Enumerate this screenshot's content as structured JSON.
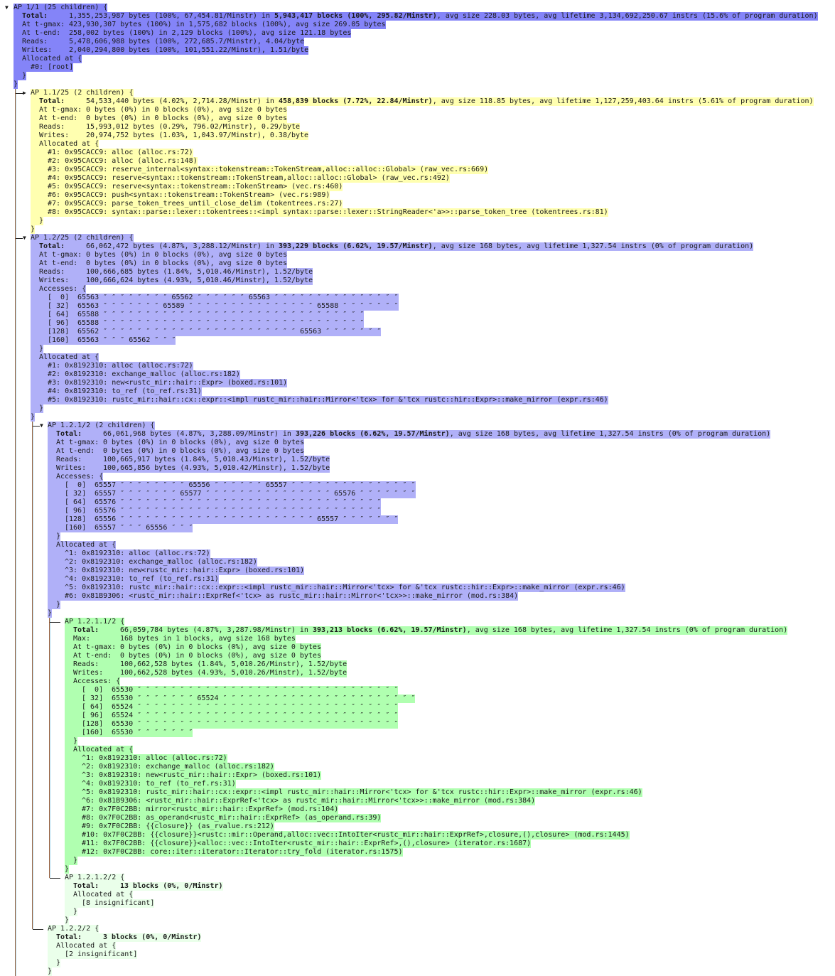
{
  "colors": {
    "root": "#8484f8",
    "blue": "#b0b0f8",
    "yellow": "#ffffb0",
    "green": "#b0ffb0",
    "pale_green": "#eaffea"
  },
  "tree": {
    "toggle": "▼",
    "header": "AP 1/1 (25 children) {",
    "bg": "#8484f8",
    "total": {
      "label": "Total:",
      "pre": "1,355,253,987 bytes (100%, 67,454.81/Minstr) in ",
      "bold": "5,943,417 blocks (100%, 295.82/Minstr)",
      "post": ", avg size 228.03 bytes, avg lifetime 3,134,692,250.67 instrs (15.6% of program duration)"
    },
    "stats": [
      {
        "label": "At t-gmax:",
        "value": "423,930,307 bytes (100%) in 1,575,682 blocks (100%), avg size 269.05 bytes"
      },
      {
        "label": "At t-end:",
        "value": "258,002 bytes (100%) in 2,129 blocks (100%), avg size 121.18 bytes"
      },
      {
        "label": "Reads:",
        "value": "5,478,606,988 bytes (100%, 272,685.7/Minstr), 4.04/byte"
      },
      {
        "label": "Writes:",
        "value": "2,040,294,800 bytes (100%, 101,551.22/Minstr), 1.51/byte"
      }
    ],
    "allocated": {
      "label": "Allocated at {",
      "frames": [
        "#0: [root]"
      ],
      "close": "}"
    },
    "close": "}",
    "children": [
      {
        "toggle": "▶",
        "header": "AP 1.1/25 (2 children) {",
        "bg": "#ffffb0",
        "total": {
          "label": "Total:",
          "pre": "54,533,440 bytes (4.02%, 2,714.28/Minstr) in ",
          "bold": "458,839 blocks (7.72%, 22.84/Minstr)",
          "post": ", avg size 118.85 bytes, avg lifetime 1,127,259,403.64 instrs (5.61% of program duration)"
        },
        "stats": [
          {
            "label": "At t-gmax:",
            "value": "0 bytes (0%) in 0 blocks (0%), avg size 0 bytes"
          },
          {
            "label": "At t-end:",
            "value": "0 bytes (0%) in 0 blocks (0%), avg size 0 bytes"
          },
          {
            "label": "Reads:",
            "value": "15,993,012 bytes (0.29%, 796.02/Minstr), 0.29/byte"
          },
          {
            "label": "Writes:",
            "value": "20,974,752 bytes (1.03%, 1,043.97/Minstr), 0.38/byte"
          }
        ],
        "allocated": {
          "label": "Allocated at {",
          "frames": [
            "#1: 0x95CACC9: alloc (alloc.rs:72)",
            "#2: 0x95CACC9: alloc (alloc.rs:148)",
            "#3: 0x95CACC9: reserve_internal<syntax::tokenstream::TokenStream,alloc::alloc::Global> (raw_vec.rs:669)",
            "#4: 0x95CACC9: reserve<syntax::tokenstream::TokenStream,alloc::alloc::Global> (raw_vec.rs:492)",
            "#5: 0x95CACC9: reserve<syntax::tokenstream::TokenStream> (vec.rs:460)",
            "#6: 0x95CACC9: push<syntax::tokenstream::TokenStream> (vec.rs:989)",
            "#7: 0x95CACC9: parse_token_trees_until_close_delim (tokentrees.rs:27)",
            "#8: 0x95CACC9: syntax::parse::lexer::tokentrees::<impl syntax::parse::lexer::StringReader<'a>>::parse_token_tree (tokentrees.rs:81)"
          ],
          "close": "}"
        },
        "close": "}",
        "children": []
      },
      {
        "toggle": "▼",
        "header": "AP 1.2/25 (2 children) {",
        "bg": "#b0b0f8",
        "total": {
          "label": "Total:",
          "pre": "66,062,472 bytes (4.87%, 3,288.12/Minstr) in ",
          "bold": "393,229 blocks (6.62%, 19.57/Minstr)",
          "post": ", avg size 168 bytes, avg lifetime 1,327.54 instrs (0% of program duration)"
        },
        "stats": [
          {
            "label": "At t-gmax:",
            "value": "0 bytes (0%) in 0 blocks (0%), avg size 0 bytes"
          },
          {
            "label": "At t-end:",
            "value": "0 bytes (0%) in 0 blocks (0%), avg size 0 bytes"
          },
          {
            "label": "Reads:",
            "value": "100,666,685 bytes (1.84%, 5,010.46/Minstr), 1.52/byte"
          },
          {
            "label": "Writes:",
            "value": "100,666,624 bytes (4.93%, 5,010.46/Minstr), 1.52/byte"
          }
        ],
        "accesses": {
          "label": "Accesses: {",
          "rows": [
            {
              "offset": "[  0]",
              "values": "65563 ″ ″ ″ ″ ″ ″ ″ ″ 65562 ″ ″ ″ ″ ″ ″ 65563 ″ ″ ″ ″ ″ ″ ″ ″ ″ ″ ″ ″ ″ ″ ″"
            },
            {
              "offset": "[ 32]",
              "values": "65563 ″ ″ ″ ″ ″ ″ ″ 65589 ″ ″ ″ ″ ″ ″ ″ ″ ″ ″ ″ ″ ″ ″ ″ 65588 ″ ″ ″ ″ ″ ″ ″"
            },
            {
              "offset": "[ 64]",
              "values": "65588 ″ ″ ″ ″ ″ ″ ″ ″ ″ ″ ″ ″ ″ ″ ″ ″ ″ ″ ″ ″ ″ ″ ″ ″ ″ ″ ″ ″ ″ ″ ″"
            },
            {
              "offset": "[ 96]",
              "values": "65588 ″ ″ ″ ″ ″ ″ ″ ″ ″ ″ ″ ″ ″ ″ ″ ″ ″ ″ ″ ″ ″ ″ ″ ″ ″ ″ ″ ″ ″ ″ ″"
            },
            {
              "offset": "[128]",
              "values": "65562 ″ ″ ″ ″ ″ ″ ″ ″ ″ ″ ″ ″ ″ ″ ″ ″ ″ ″ ″ ″ ″ ″ ″ 65563 ″ ″ ″ ″ ″ ″ ″"
            },
            {
              "offset": "[160]",
              "values": "65563 ″ ″ ″ 65562 ″ ″ ″"
            }
          ],
          "close": "}"
        },
        "allocated": {
          "label": "Allocated at {",
          "frames": [
            "#1: 0x8192310: alloc (alloc.rs:72)",
            "#2: 0x8192310: exchange_malloc (alloc.rs:182)",
            "#3: 0x8192310: new<rustc_mir::hair::Expr> (boxed.rs:101)",
            "#4: 0x8192310: to_ref (to_ref.rs:31)",
            "#5: 0x8192310: rustc_mir::hair::cx::expr::<impl rustc_mir::hair::Mirror<'tcx> for &'tcx rustc::hir::Expr>::make_mirror (expr.rs:46)"
          ],
          "close": "}"
        },
        "close": "}",
        "children": [
          {
            "toggle": "▼",
            "header": "AP 1.2.1/2 (2 children) {",
            "bg": "#b0b0f8",
            "total": {
              "label": "Total:",
              "pre": "66,061,968 bytes (4.87%, 3,288.09/Minstr) in ",
              "bold": "393,226 blocks (6.62%, 19.57/Minstr)",
              "post": ", avg size 168 bytes, avg lifetime 1,327.54 instrs (0% of program duration)"
            },
            "stats": [
              {
                "label": "At t-gmax:",
                "value": "0 bytes (0%) in 0 blocks (0%), avg size 0 bytes"
              },
              {
                "label": "At t-end:",
                "value": "0 bytes (0%) in 0 blocks (0%), avg size 0 bytes"
              },
              {
                "label": "Reads:",
                "value": "100,665,917 bytes (1.84%, 5,010.43/Minstr), 1.52/byte"
              },
              {
                "label": "Writes:",
                "value": "100,665,856 bytes (4.93%, 5,010.42/Minstr), 1.52/byte"
              }
            ],
            "accesses": {
              "label": "Accesses: {",
              "rows": [
                {
                  "offset": "[  0]",
                  "values": "65557 ″ ″ ″ ″ ″ ″ ″ ″ 65556 ″ ″ ″ ″ ″ ″ 65557 ″ ″ ″ ″ ″ ″ ″ ″ ″ ″ ″ ″ ″ ″ ″"
                },
                {
                  "offset": "[ 32]",
                  "values": "65557 ″ ″ ″ ″ ″ ″ ″ 65577 ″ ″ ″ ″ ″ ″ ″ ″ ″ ″ ″ ″ ″ ″ ″ 65576 ″ ″ ″ ″ ″ ″ ″"
                },
                {
                  "offset": "[ 64]",
                  "values": "65576 ″ ″ ″ ″ ″ ″ ″ ″ ″ ″ ″ ″ ″ ″ ″ ″ ″ ″ ″ ″ ″ ″ ″ ″ ″ ″ ″ ″ ″ ″ ″"
                },
                {
                  "offset": "[ 96]",
                  "values": "65576 ″ ″ ″ ″ ″ ″ ″ ″ ″ ″ ″ ″ ″ ″ ″ ″ ″ ″ ″ ″ ″ ″ ″ ″ ″ ″ ″ ″ ″ ″ ″"
                },
                {
                  "offset": "[128]",
                  "values": "65556 ″ ″ ″ ″ ″ ″ ″ ″ ″ ″ ″ ″ ″ ″ ″ ″ ″ ″ ″ ″ ″ ″ ″ 65557 ″ ″ ″ ″ ″ ″ ″"
                },
                {
                  "offset": "[160]",
                  "values": "65557 ″ ″ ″ 65556 ″ ″ ″"
                }
              ],
              "close": "}"
            },
            "allocated": {
              "label": "Allocated at {",
              "frames": [
                "^1: 0x8192310: alloc (alloc.rs:72)",
                "^2: 0x8192310: exchange_malloc (alloc.rs:182)",
                "^3: 0x8192310: new<rustc_mir::hair::Expr> (boxed.rs:101)",
                "^4: 0x8192310: to_ref (to_ref.rs:31)",
                "^5: 0x8192310: rustc_mir::hair::cx::expr::<impl rustc_mir::hair::Mirror<'tcx> for &'tcx rustc::hir::Expr>::make_mirror (expr.rs:46)",
                "#6: 0x81B9306: <rustc_mir::hair::ExprRef<'tcx> as rustc_mir::hair::Mirror<'tcx>>::make_mirror (mod.rs:384)"
              ],
              "close": "}"
            },
            "close": "}",
            "children": [
              {
                "toggle": "",
                "header": "AP 1.2.1.1/2 {",
                "bg": "#b0ffb0",
                "total": {
                  "label": "Total:",
                  "pre": "66,059,784 bytes (4.87%, 3,287.98/Minstr) in ",
                  "bold": "393,213 blocks (6.62%, 19.57/Minstr)",
                  "post": ", avg size 168 bytes, avg lifetime 1,327.54 instrs (0% of program duration)"
                },
                "stats": [
                  {
                    "label": "Max:",
                    "value": "168 bytes in 1 blocks, avg size 168 bytes"
                  },
                  {
                    "label": "At t-gmax:",
                    "value": "0 bytes (0%) in 0 blocks (0%), avg size 0 bytes"
                  },
                  {
                    "label": "At t-end:",
                    "value": "0 bytes (0%) in 0 blocks (0%), avg size 0 bytes"
                  },
                  {
                    "label": "Reads:",
                    "value": "100,662,528 bytes (1.84%, 5,010.26/Minstr), 1.52/byte"
                  },
                  {
                    "label": "Writes:",
                    "value": "100,662,528 bytes (4.93%, 5,010.26/Minstr), 1.52/byte"
                  }
                ],
                "accesses": {
                  "label": "Accesses: {",
                  "rows": [
                    {
                      "offset": "[  0]",
                      "values": "65530 ″ ″ ″ ″ ″ ″ ″ ″ ″ ″ ″ ″ ″ ″ ″ ″ ″ ″ ″ ″ ″ ″ ″ ″ ″ ″ ″ ″ ″ ″ ″"
                    },
                    {
                      "offset": "[ 32]",
                      "values": "65530 ″ ″ ″ ″ ″ ″ ″ 65524 ″ ″ ″ ″ ″ ″ ″ ″ ″ ″ ″ ″ ″ ″ ″ ″ ″ ″ ″ ″ ″ ″ ″"
                    },
                    {
                      "offset": "[ 64]",
                      "values": "65524 ″ ″ ″ ″ ″ ″ ″ ″ ″ ″ ″ ″ ″ ″ ″ ″ ″ ″ ″ ″ ″ ″ ″ ″ ″ ″ ″ ″ ″ ″ ″"
                    },
                    {
                      "offset": "[ 96]",
                      "values": "65524 ″ ″ ″ ″ ″ ″ ″ ″ ″ ″ ″ ″ ″ ″ ″ ″ ″ ″ ″ ″ ″ ″ ″ ″ ″ ″ ″ ″ ″ ″ ″"
                    },
                    {
                      "offset": "[128]",
                      "values": "65530 ″ ″ ″ ″ ″ ″ ″ ″ ″ ″ ″ ″ ″ ″ ″ ″ ″ ″ ″ ″ ″ ″ ″ ″ ″ ″ ″ ″ ″ ″ ″"
                    },
                    {
                      "offset": "[160]",
                      "values": "65530 ″ ″ ″ ″ ″ ″ ″"
                    }
                  ],
                  "close": "}"
                },
                "allocated": {
                  "label": "Allocated at {",
                  "frames": [
                    "^1: 0x8192310: alloc (alloc.rs:72)",
                    "^2: 0x8192310: exchange_malloc (alloc.rs:182)",
                    "^3: 0x8192310: new<rustc_mir::hair::Expr> (boxed.rs:101)",
                    "^4: 0x8192310: to_ref (to_ref.rs:31)",
                    "^5: 0x8192310: rustc_mir::hair::cx::expr::<impl rustc_mir::hair::Mirror<'tcx> for &'tcx rustc::hir::Expr>::make_mirror (expr.rs:46)",
                    "^6: 0x81B9306: <rustc_mir::hair::ExprRef<'tcx> as rustc_mir::hair::Mirror<'tcx>>::make_mirror (mod.rs:384)",
                    "#7: 0x7F0C2BB: mirror<rustc_mir::hair::ExprRef> (mod.rs:104)",
                    "#8: 0x7F0C2BB: as_operand<rustc_mir::hair::ExprRef> (as_operand.rs:39)",
                    "#9: 0x7F0C2BB: {{closure}} (as_rvalue.rs:212)",
                    "#10: 0x7F0C2BB: {{closure}}<rustc::mir::Operand,alloc::vec::IntoIter<rustc_mir::hair::ExprRef>,closure,(),closure> (mod.rs:1445)",
                    "#11: 0x7F0C2BB: {{closure}}<alloc::vec::IntoIter<rustc_mir::hair::ExprRef>,(),closure> (iterator.rs:1687)",
                    "#12: 0x7F0C2BB: core::iter::iterator::Iterator::try_fold (iterator.rs:1575)"
                  ],
                  "close": "}"
                },
                "close": "}",
                "children": []
              },
              {
                "toggle": "",
                "header": "AP 1.2.1.2/2 {",
                "bg": "#eaffea",
                "total": {
                  "label": "Total:",
                  "bold": "13 blocks (0%, 0/Minstr)"
                },
                "stats": [],
                "allocated": {
                  "label": "Allocated at {",
                  "frames": [
                    "[8 insignificant]"
                  ],
                  "close": "}"
                },
                "close": "}",
                "children": []
              }
            ]
          },
          {
            "toggle": "",
            "header": "AP 1.2.2/2 {",
            "bg": "#eaffea",
            "total": {
              "label": "Total:",
              "bold": "3 blocks (0%, 0/Minstr)"
            },
            "stats": [],
            "allocated": {
              "label": "Allocated at {",
              "frames": [
                "[2 insignificant]"
              ],
              "close": "}"
            },
            "close": "}",
            "children": []
          }
        ]
      }
    ]
  }
}
